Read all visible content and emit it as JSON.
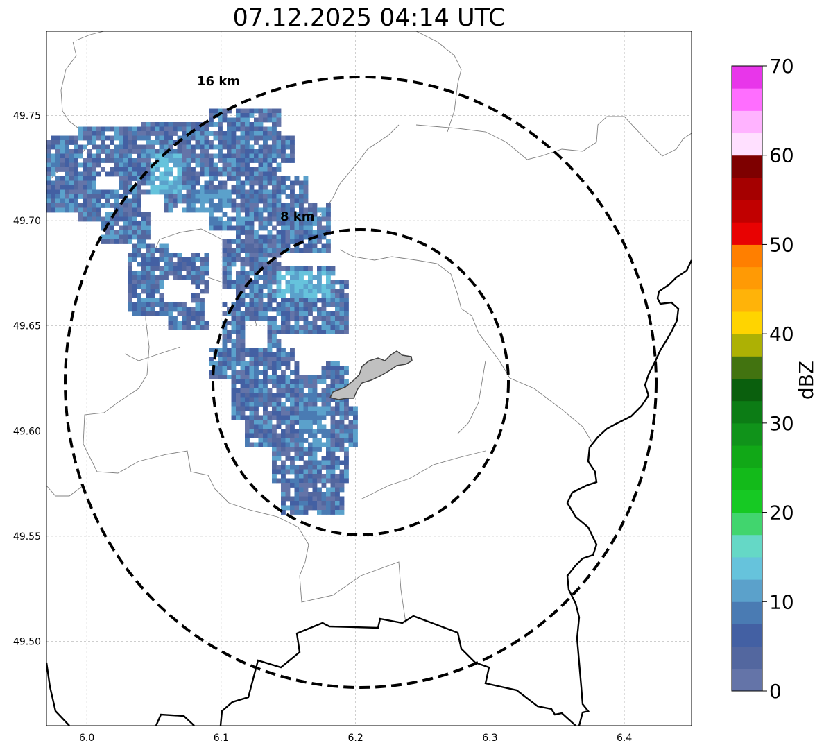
{
  "title": "07.12.2025 04:14 UTC",
  "map": {
    "x_ticks": [
      6.0,
      6.1,
      6.2,
      6.3,
      6.4
    ],
    "x_tick_labels": [
      "6.0",
      "6.1",
      "6.2",
      "6.3",
      "6.4"
    ],
    "y_ticks": [
      49.75,
      49.7,
      49.65,
      49.6,
      49.55,
      49.5
    ],
    "y_tick_labels": [
      "49.75",
      "49.70",
      "49.65",
      "49.60",
      "49.55",
      "49.50"
    ],
    "xlim": [
      5.97,
      6.45
    ],
    "ylim": [
      49.46,
      49.79
    ],
    "grid": true,
    "radar_center": [
      6.203,
      49.6235
    ],
    "rings": [
      {
        "radius_km": 8,
        "label": "8 km"
      },
      {
        "radius_km": 16,
        "label": "16 km"
      }
    ]
  },
  "colorbar": {
    "label": "dBZ",
    "ticks": [
      0,
      10,
      20,
      30,
      40,
      50,
      60,
      70
    ],
    "tick_labels": [
      "0",
      "10",
      "20",
      "30",
      "40",
      "50",
      "60",
      "70"
    ],
    "range": [
      0,
      70
    ],
    "colors": [
      "#6474a8",
      "#53679f",
      "#4360a3",
      "#4a7bb3",
      "#5ba1cb",
      "#66c3dc",
      "#65d8c6",
      "#41d56e",
      "#16c923",
      "#13ba1a",
      "#11a817",
      "#10931a",
      "#0c7c15",
      "#0a5f0d",
      "#427310",
      "#adb104",
      "#ffd400",
      "#ffb309",
      "#ff9a05",
      "#ff7f00",
      "#e80202",
      "#c10000",
      "#a50000",
      "#7e0000",
      "#ffe0ff",
      "#ffb3ff",
      "#ff6eff",
      "#e836ea"
    ]
  }
}
